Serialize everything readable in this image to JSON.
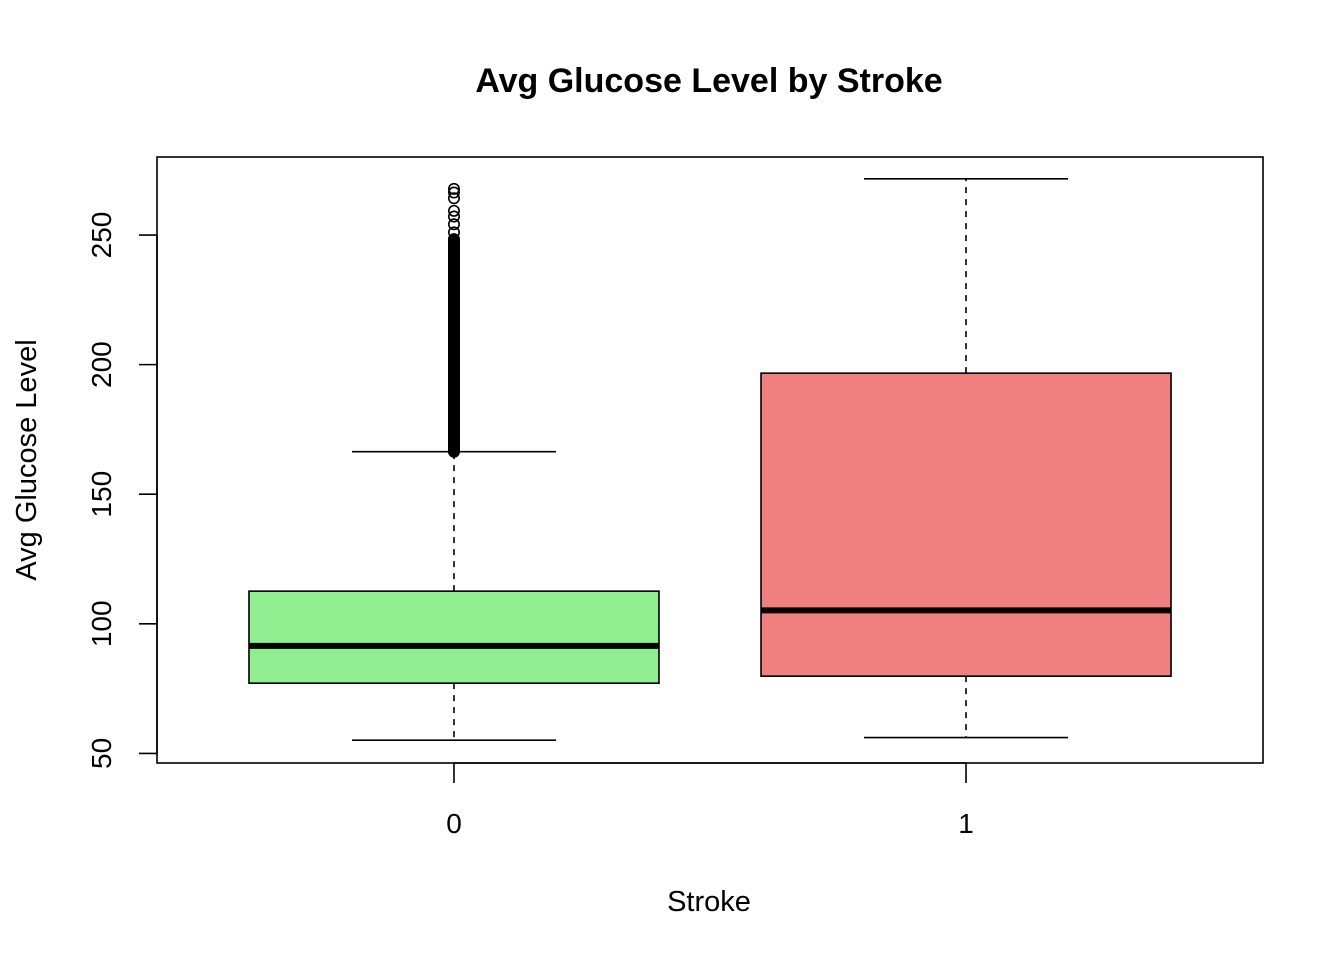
{
  "chart_data": {
    "type": "boxplot",
    "title": "Avg Glucose Level by Stroke",
    "xlabel": "Stroke",
    "ylabel": "Avg Glucose Level",
    "ylim": [
      46.3,
      280.1
    ],
    "yticks": [
      50,
      100,
      150,
      200,
      250
    ],
    "grid": false,
    "categories": [
      "0",
      "1"
    ],
    "boxes": [
      {
        "category": "0",
        "min": 55.1,
        "q1": 77.1,
        "median": 91.5,
        "q3": 112.6,
        "max": 166.4,
        "outlier_range": [
          166.4,
          267.8
        ],
        "fill": "#90EE90"
      },
      {
        "category": "1",
        "min": 56.1,
        "q1": 79.8,
        "median": 105.2,
        "q3": 196.7,
        "max": 271.7,
        "fill": "#F08080"
      }
    ]
  }
}
